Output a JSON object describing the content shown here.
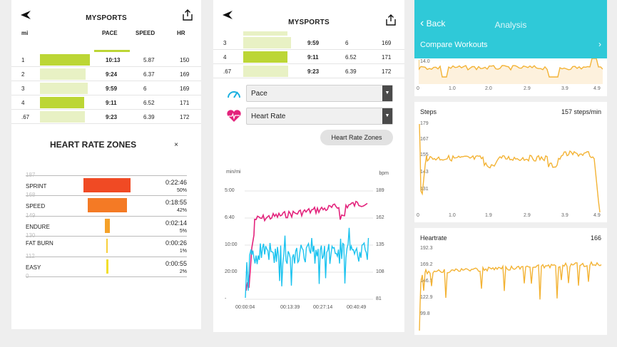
{
  "workout": {
    "app_title": "MYSPORTS",
    "columns": {
      "mi": "mi",
      "pace": "PACE",
      "speed": "SPEED",
      "hr": "HR"
    },
    "splits": [
      {
        "mi": "1",
        "pace": "10:13",
        "speed": "5.87",
        "hr": "150",
        "bar": 0.83,
        "bar_color": "#bcd635"
      },
      {
        "mi": "2",
        "pace": "9:24",
        "speed": "6.37",
        "hr": "169",
        "bar": 0.76,
        "bar_color": "#e8f1c4"
      },
      {
        "mi": "3",
        "pace": "9:59",
        "speed": "6",
        "hr": "169",
        "bar": 0.8,
        "bar_color": "#e8f1c4"
      },
      {
        "mi": "4",
        "pace": "9:11",
        "speed": "6.52",
        "hr": "171",
        "bar": 0.74,
        "bar_color": "#bcd635"
      },
      {
        "mi": ".67",
        "pace": "9:23",
        "speed": "6.39",
        "hr": "172",
        "bar": 0.75,
        "bar_color": "#e8f1c4"
      }
    ],
    "zones": {
      "title": "HEART RATE ZONES",
      "close": "×",
      "axis": [
        "187",
        "168",
        "149",
        "130",
        "112",
        "0"
      ],
      "items": [
        {
          "name": "SPRINT",
          "time": "0:22:46",
          "pct": "50%",
          "color": "#f04a24",
          "share": 0.5
        },
        {
          "name": "SPEED",
          "time": "0:18:55",
          "pct": "42%",
          "color": "#f47a25",
          "share": 0.42
        },
        {
          "name": "ENDURE",
          "time": "0:02:14",
          "pct": "5%",
          "color": "#f5a128",
          "share": 0.05
        },
        {
          "name": "FAT BURN",
          "time": "0:00:26",
          "pct": "1%",
          "color": "#f7cf3a",
          "share": 0.01
        },
        {
          "name": "EASY",
          "time": "0:00:55",
          "pct": "2%",
          "color": "#f2df2a",
          "share": 0.02
        }
      ]
    }
  },
  "chart_screen": {
    "app_title": "MYSPORTS",
    "splits": [
      {
        "mi": "3",
        "pace": "9:59",
        "speed": "6",
        "hr": "169",
        "bar": 0.8,
        "bar_color": "#e8f1c4"
      },
      {
        "mi": "4",
        "pace": "9:11",
        "speed": "6.52",
        "hr": "171",
        "bar": 0.74,
        "bar_color": "#bcd635"
      },
      {
        "mi": ".67",
        "pace": "9:23",
        "speed": "6.39",
        "hr": "172",
        "bar": 0.75,
        "bar_color": "#e8f1c4"
      }
    ],
    "select_1": "Pace",
    "select_2": "Heart Rate",
    "zones_button": "Heart Rate Zones",
    "left_unit": "min/mi",
    "right_unit": "bpm",
    "left_ticks": [
      "5:00",
      "6:40",
      "10:00",
      "20:00",
      "-"
    ],
    "right_ticks": [
      "189",
      "162",
      "135",
      "108",
      "81"
    ],
    "x_ticks": [
      "00:00:04",
      "00:13:39",
      "00:27:14",
      "00:40:49"
    ],
    "colors": {
      "pace": "#1bc3ef",
      "hr": "#e3237c"
    }
  },
  "analysis": {
    "back": "Back",
    "title": "Analysis",
    "compare": "Compare Workouts",
    "top_label": "14.0",
    "top_x": [
      "0",
      "1.0",
      "2.0",
      "2.9",
      "3.9",
      "4.9"
    ],
    "steps_label": "Steps",
    "steps_value": "157 steps/min",
    "steps_y": [
      "179",
      "167",
      "155",
      "143",
      "131"
    ],
    "steps_x": [
      "0",
      "1.0",
      "1.9",
      "2.9",
      "3.9",
      "4.9"
    ],
    "hr_label": "Heartrate",
    "hr_value": "166",
    "hr_y": [
      "192.3",
      "169.2",
      "146.1",
      "122.9",
      "99.8"
    ],
    "line_color": "#f3b335"
  },
  "chart_data": [
    {
      "type": "bar",
      "title": "HEART RATE ZONES",
      "categories": [
        "SPRINT",
        "SPEED",
        "ENDURE",
        "FAT BURN",
        "EASY"
      ],
      "values": [
        50,
        42,
        5,
        1,
        2
      ]
    },
    {
      "type": "line",
      "x": [
        "00:00:04",
        "00:13:39",
        "00:27:14",
        "00:40:49"
      ],
      "series": [
        {
          "name": "Pace",
          "values": [
            20.0,
            11.5,
            12.0,
            10.5
          ]
        },
        {
          "name": "Heart Rate",
          "values": [
            100,
            162,
            170,
            171
          ]
        }
      ],
      "xlabel": "",
      "ylabel": "min/mi"
    },
    {
      "type": "line",
      "title": "Steps",
      "x": [
        0,
        1.0,
        1.9,
        2.9,
        3.9,
        4.9
      ],
      "series": [
        {
          "name": "Steps",
          "values": [
            160,
            157,
            154,
            158,
            157,
            130
          ]
        }
      ],
      "ylim": [
        131,
        179
      ]
    },
    {
      "type": "line",
      "title": "Heartrate",
      "x": [
        0,
        1.0,
        1.9,
        2.9,
        3.9,
        4.9
      ],
      "series": [
        {
          "name": "Heartrate",
          "values": [
            110,
            164,
            168,
            170,
            170,
            166
          ]
        }
      ],
      "ylim": [
        99.8,
        192.3
      ]
    }
  ]
}
